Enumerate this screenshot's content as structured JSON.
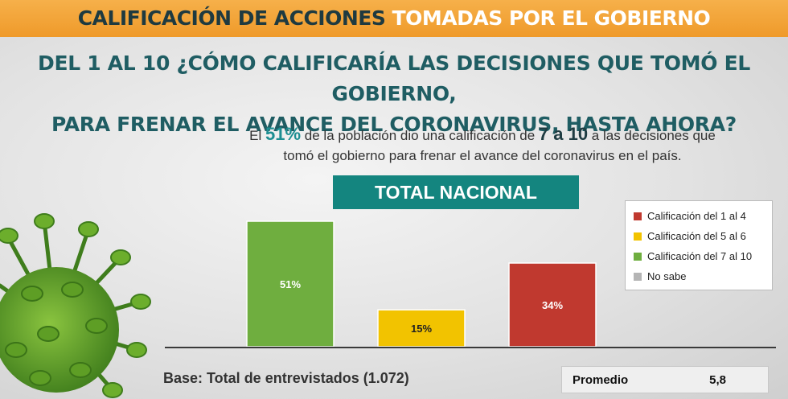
{
  "header": {
    "title_part1": "Calificación de acciones",
    "title_part2": "tomadas por el gobierno"
  },
  "question": {
    "line1": "Del 1 al 10 ¿Cómo calificaría las decisiones que tomó el gobierno,",
    "line2": "para frenar el avance del coronavirus, hasta ahora?"
  },
  "summary": {
    "pre": "El",
    "percent": "51%",
    "mid": "de la población dio una calificación de",
    "range": "7 a 10",
    "post": "a las decisiones que tomó el gobierno para frenar el avance del coronavirus en el país."
  },
  "section_label": "TOTAL NACIONAL",
  "legend": [
    {
      "label": "Calificación del 1 al 4",
      "color": "#c0392f"
    },
    {
      "label": "Calificación del 5 al 6",
      "color": "#f2c300"
    },
    {
      "label": "Calificación del 7 al 10",
      "color": "#6fae3f"
    },
    {
      "label": "No sabe",
      "color": "#b5b5b5"
    }
  ],
  "chart_data": {
    "type": "bar",
    "categories": [
      "Calificación del 7 al 10",
      "Calificación del 5 al 6",
      "Calificación del 1 al 4"
    ],
    "values": [
      51,
      15,
      34
    ],
    "data_labels": [
      "51%",
      "15%",
      "34%"
    ],
    "colors": [
      "#6fae3f",
      "#f2c300",
      "#c0392f"
    ],
    "ylim": [
      0,
      51
    ],
    "legend_position": "right"
  },
  "base_text": "Base: Total de entrevistados (1.072)",
  "promedio": {
    "label": "Promedio",
    "value": "5,8"
  }
}
